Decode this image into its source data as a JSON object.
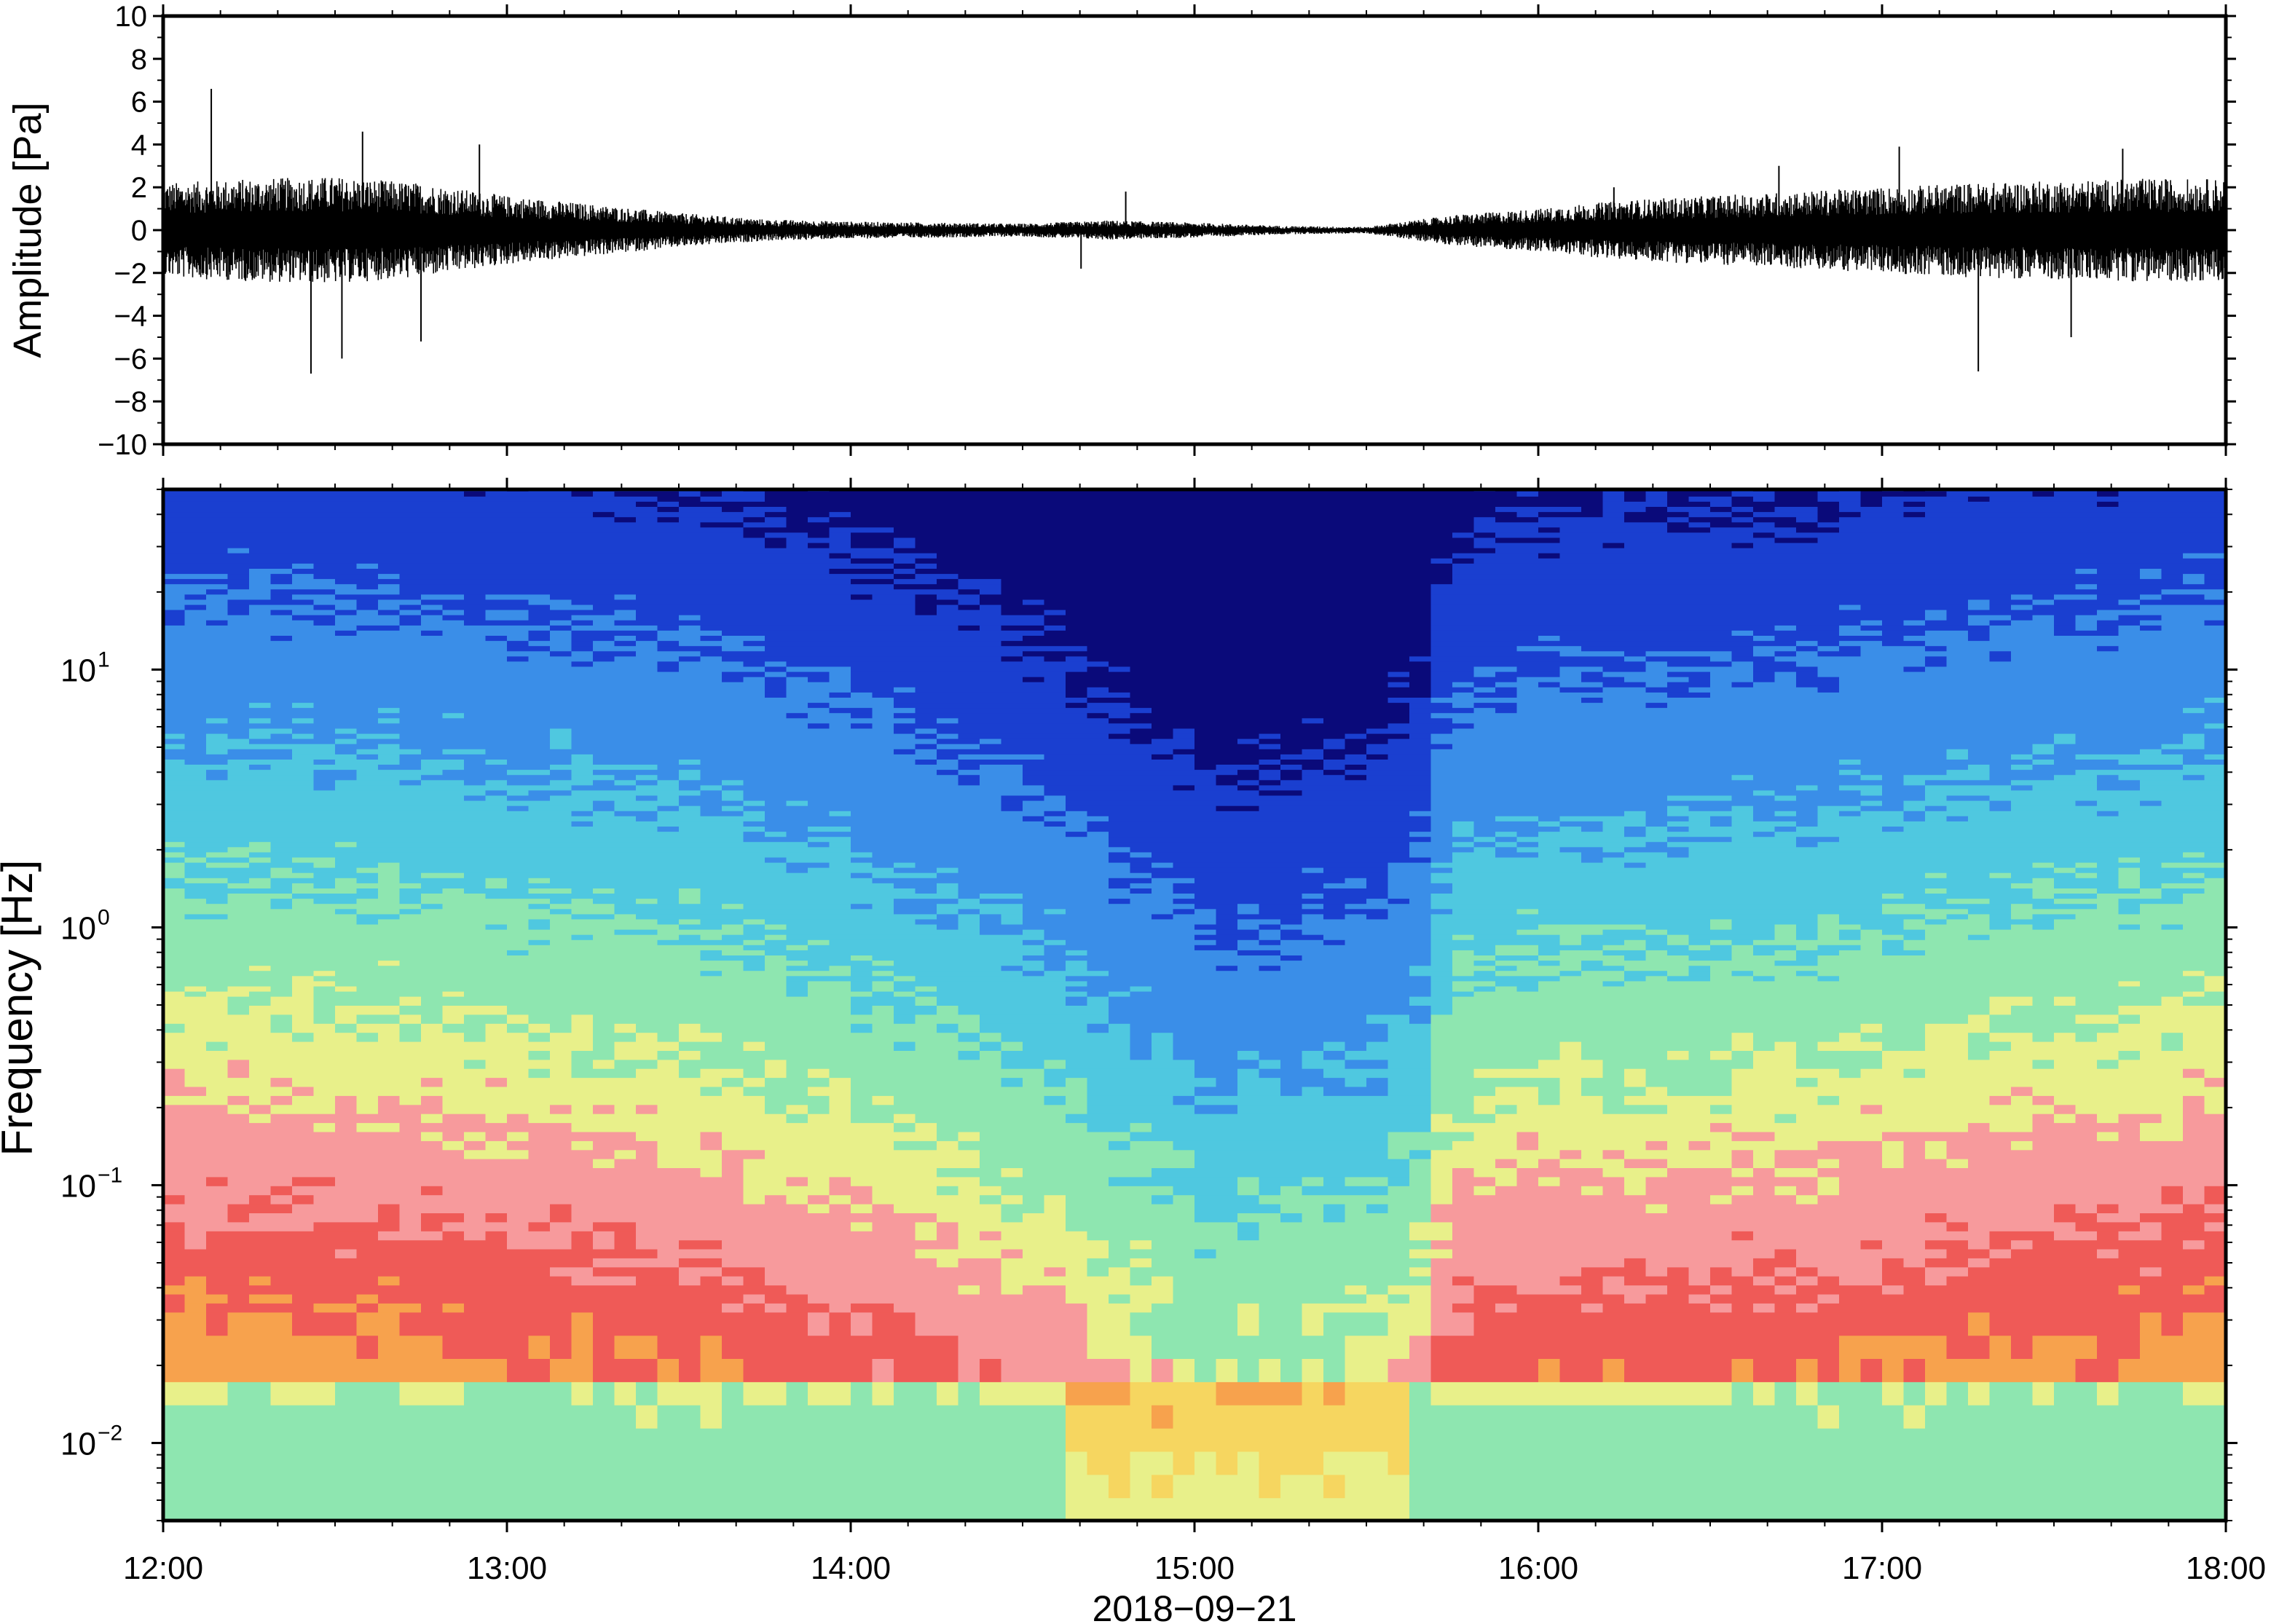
{
  "chart_data": [
    {
      "type": "line",
      "panel": "waveform",
      "ylabel": "Amplitude [Pa]",
      "ylim": [
        -10,
        10
      ],
      "yticks": [
        10,
        8,
        6,
        4,
        2,
        0,
        -2,
        -4,
        -6,
        -8,
        -10
      ],
      "ytick_labels": [
        "10",
        "8",
        "6",
        "4",
        "2",
        "0",
        "−2",
        "−4",
        "−6",
        "−8",
        "−10"
      ],
      "x_range": [
        "12:00",
        "18:00"
      ],
      "envelope": {
        "hours": [
          12.0,
          12.25,
          12.5,
          12.75,
          13.0,
          13.25,
          13.5,
          13.75,
          14.0,
          14.25,
          14.5,
          14.75,
          15.0,
          15.25,
          15.5,
          15.75,
          16.0,
          16.25,
          16.5,
          16.75,
          17.0,
          17.25,
          17.5,
          17.75,
          18.0
        ],
        "half_amplitude_pa": [
          2.2,
          2.4,
          2.5,
          2.2,
          1.6,
          1.2,
          0.8,
          0.5,
          0.4,
          0.35,
          0.3,
          0.45,
          0.35,
          0.2,
          0.15,
          0.7,
          1.0,
          1.4,
          1.6,
          1.8,
          2.0,
          2.2,
          2.3,
          2.4,
          2.4
        ]
      },
      "spikes": [
        {
          "hour": 12.14,
          "value": 6.6
        },
        {
          "hour": 12.43,
          "value": -6.7
        },
        {
          "hour": 12.52,
          "value": -6.0
        },
        {
          "hour": 12.58,
          "value": 4.6
        },
        {
          "hour": 12.75,
          "value": -5.2
        },
        {
          "hour": 12.92,
          "value": 4.0
        },
        {
          "hour": 14.67,
          "value": -1.8
        },
        {
          "hour": 14.8,
          "value": 1.8
        },
        {
          "hour": 16.22,
          "value": 2.0
        },
        {
          "hour": 16.7,
          "value": 3.0
        },
        {
          "hour": 17.05,
          "value": 3.9
        },
        {
          "hour": 17.28,
          "value": -6.6
        },
        {
          "hour": 17.55,
          "value": -5.0
        },
        {
          "hour": 17.7,
          "value": 3.8
        }
      ]
    },
    {
      "type": "heatmap",
      "panel": "spectrogram",
      "ylabel": "Frequency [Hz]",
      "y_scale": "log",
      "ylim_hz": [
        0.005,
        50
      ],
      "yticks": [
        {
          "value": 10,
          "base": "10",
          "exp": "1"
        },
        {
          "value": 1,
          "base": "10",
          "exp": "0"
        },
        {
          "value": 0.1,
          "base": "10",
          "exp": "−1"
        },
        {
          "value": 0.01,
          "base": "10",
          "exp": "−2"
        }
      ],
      "xlabel": "2018−09−21",
      "x_range": [
        "12:00",
        "18:00"
      ],
      "xticks": [
        "12:00",
        "13:00",
        "14:00",
        "15:00",
        "16:00",
        "17:00",
        "18:00"
      ],
      "colormap": [
        "#8ee6b0",
        "#e8f08a",
        "#f6d660",
        "#f7a24d",
        "#ef5a57",
        "#f79a9c",
        "#e8f08a",
        "#8ee6b0",
        "#4fc8e0",
        "#3a8ee8",
        "#1a3fd0",
        "#0a0a7a"
      ],
      "energy_boundary": {
        "hours": [
          12.0,
          12.5,
          13.0,
          13.5,
          13.75,
          14.0,
          14.25,
          14.5,
          14.75,
          15.0,
          15.25,
          15.5,
          15.65,
          15.75,
          16.0,
          16.5,
          17.0,
          17.5,
          18.0
        ],
        "log10_hz": [
          -0.3,
          -0.3,
          -0.4,
          -0.5,
          -0.6,
          -0.7,
          -0.9,
          -1.0,
          -1.3,
          -1.6,
          -1.6,
          -1.5,
          -1.3,
          -0.7,
          -0.6,
          -0.6,
          -0.5,
          -0.4,
          -0.3
        ]
      }
    }
  ]
}
